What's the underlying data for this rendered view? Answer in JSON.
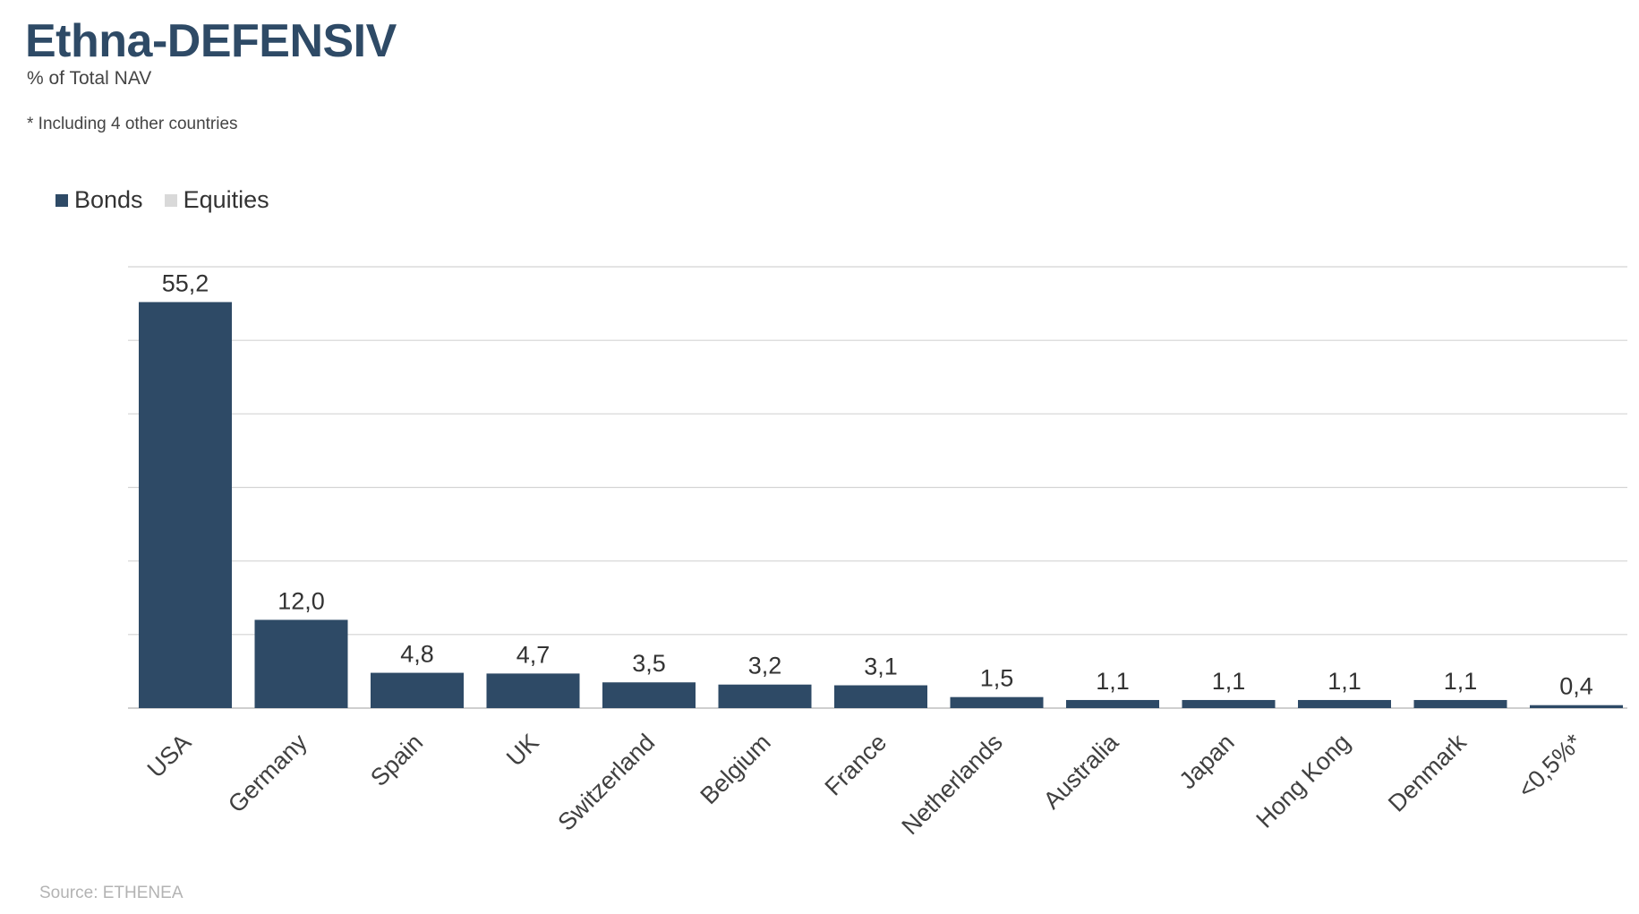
{
  "header": {
    "title": "Ethna-DEFENSIV",
    "subtitle": "% of Total NAV",
    "note": "* Including 4 other countries"
  },
  "legend": {
    "items": [
      {
        "label": "Bonds",
        "color": "#2e4a66"
      },
      {
        "label": "Equities",
        "color": "#d9d9d9"
      }
    ]
  },
  "footer": {
    "source": "Source: ETHENEA"
  },
  "chart_data": {
    "type": "bar",
    "title": "Ethna-DEFENSIV",
    "subtitle": "% of Total NAV",
    "categories": [
      "USA",
      "Germany",
      "Spain",
      "UK",
      "Switzerland",
      "Belgium",
      "France",
      "Netherlands",
      "Australia",
      "Japan",
      "Hong Kong",
      "Denmark",
      "<0,5%*"
    ],
    "series": [
      {
        "name": "Bonds",
        "color": "#2e4a66",
        "values": [
          55.2,
          12.0,
          4.8,
          4.7,
          3.5,
          3.2,
          3.1,
          1.5,
          1.1,
          1.1,
          1.1,
          1.1,
          0.4
        ]
      },
      {
        "name": "Equities",
        "color": "#d9d9d9",
        "values": [
          0,
          0,
          0,
          0,
          0,
          0,
          0,
          0,
          0,
          0,
          0,
          0,
          0
        ]
      }
    ],
    "labels": [
      "55,2",
      "12,0",
      "4,8",
      "4,7",
      "3,5",
      "3,2",
      "3,1",
      "1,5",
      "1,1",
      "1,1",
      "1,1",
      "1,1",
      "0,4"
    ],
    "ylim": [
      0,
      60
    ],
    "gridlines": [
      0,
      10,
      20,
      30,
      40,
      50,
      60
    ],
    "grid": true,
    "legend_position": "top-left"
  }
}
